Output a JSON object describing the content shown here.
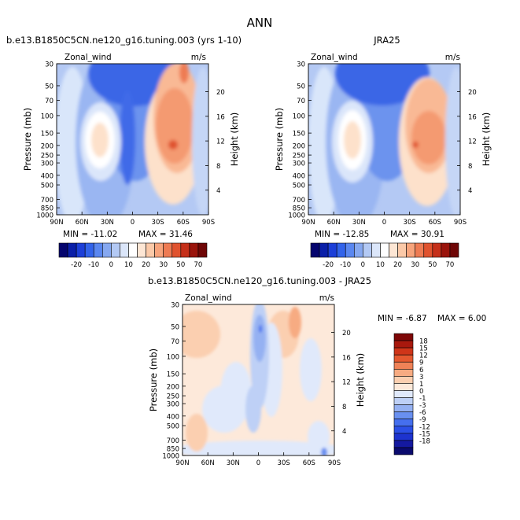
{
  "figure": {
    "title": "ANN"
  },
  "chart_data": [
    {
      "type": "heatmap",
      "title": "b.e13.B1850C5CN.ne120_g16.tuning.003 (yrs 1-10)",
      "variable_label": "Zonal_wind",
      "units": "m/s",
      "ylabel": "Pressure (mb)",
      "ylabel_right": "Height (km)",
      "pressure_ticks": [
        "30",
        "50",
        "70",
        "100",
        "150",
        "200",
        "250",
        "300",
        "400",
        "500",
        "700",
        "850",
        "1000"
      ],
      "height_ticks": [
        "20",
        "16",
        "12",
        "8",
        "4"
      ],
      "lat_ticks": [
        "90N",
        "60N",
        "30N",
        "0",
        "30S",
        "60S",
        "90S"
      ],
      "min_label": "MIN = -11.02",
      "max_label": "MAX = 31.46",
      "min": -11.02,
      "max": 31.46,
      "colorbar_ticks": [
        "-20",
        "-10",
        "0",
        "10",
        "20",
        "30",
        "50",
        "70"
      ]
    },
    {
      "type": "heatmap",
      "title": "JRA25",
      "variable_label": "Zonal_wind",
      "units": "m/s",
      "ylabel": "Pressure (mb)",
      "ylabel_right": "Height (km)",
      "pressure_ticks": [
        "30",
        "50",
        "70",
        "100",
        "150",
        "200",
        "250",
        "300",
        "400",
        "500",
        "700",
        "850",
        "1000"
      ],
      "height_ticks": [
        "20",
        "16",
        "12",
        "8",
        "4"
      ],
      "lat_ticks": [
        "90N",
        "60N",
        "30N",
        "0",
        "30S",
        "60S",
        "90S"
      ],
      "min_label": "MIN = -12.85",
      "max_label": "MAX = 30.91",
      "min": -12.85,
      "max": 30.91,
      "colorbar_ticks": [
        "-20",
        "-10",
        "0",
        "10",
        "20",
        "30",
        "50",
        "70"
      ]
    },
    {
      "type": "heatmap",
      "title": "b.e13.B1850C5CN.ne120_g16.tuning.003 - JRA25",
      "variable_label": "Zonal_wind",
      "units": "m/s",
      "ylabel": "Pressure (mb)",
      "ylabel_right": "Height (km)",
      "pressure_ticks": [
        "30",
        "50",
        "70",
        "100",
        "150",
        "200",
        "250",
        "300",
        "400",
        "500",
        "700",
        "850",
        "1000"
      ],
      "height_ticks": [
        "20",
        "16",
        "12",
        "8",
        "4"
      ],
      "lat_ticks": [
        "90N",
        "60N",
        "30N",
        "0",
        "30S",
        "60S",
        "90S"
      ],
      "min_label": "MIN =  -6.87",
      "max_label": "MAX =    6.00",
      "min": -6.87,
      "max": 6.0,
      "colorbar_ticks": [
        "18",
        "15",
        "12",
        "9",
        "6",
        "3",
        "1",
        "0",
        "-1",
        "-3",
        "-6",
        "-9",
        "-12",
        "-15",
        "-18"
      ]
    }
  ],
  "colors": {
    "ts_scale": [
      "#05056e",
      "#0a1fa8",
      "#1c3fd8",
      "#3263ea",
      "#5a87f0",
      "#86a8f0",
      "#b3c9f4",
      "#dbe6fa",
      "#ffffff",
      "#fde6d4",
      "#fbc9a8",
      "#f7a47c",
      "#ee7b53",
      "#e0532f",
      "#c5301a",
      "#9a140c",
      "#6e0606"
    ],
    "diff_scale": [
      "#0a0a6e",
      "#1419a0",
      "#1d33cf",
      "#2b4fe6",
      "#456fee",
      "#6990f0",
      "#95b1f2",
      "#bed0f6",
      "#e0e9fb",
      "#fde9da",
      "#fbcfb0",
      "#f7ab82",
      "#ef8257",
      "#e4582f",
      "#cf3519",
      "#a8180d",
      "#7e0707"
    ]
  }
}
